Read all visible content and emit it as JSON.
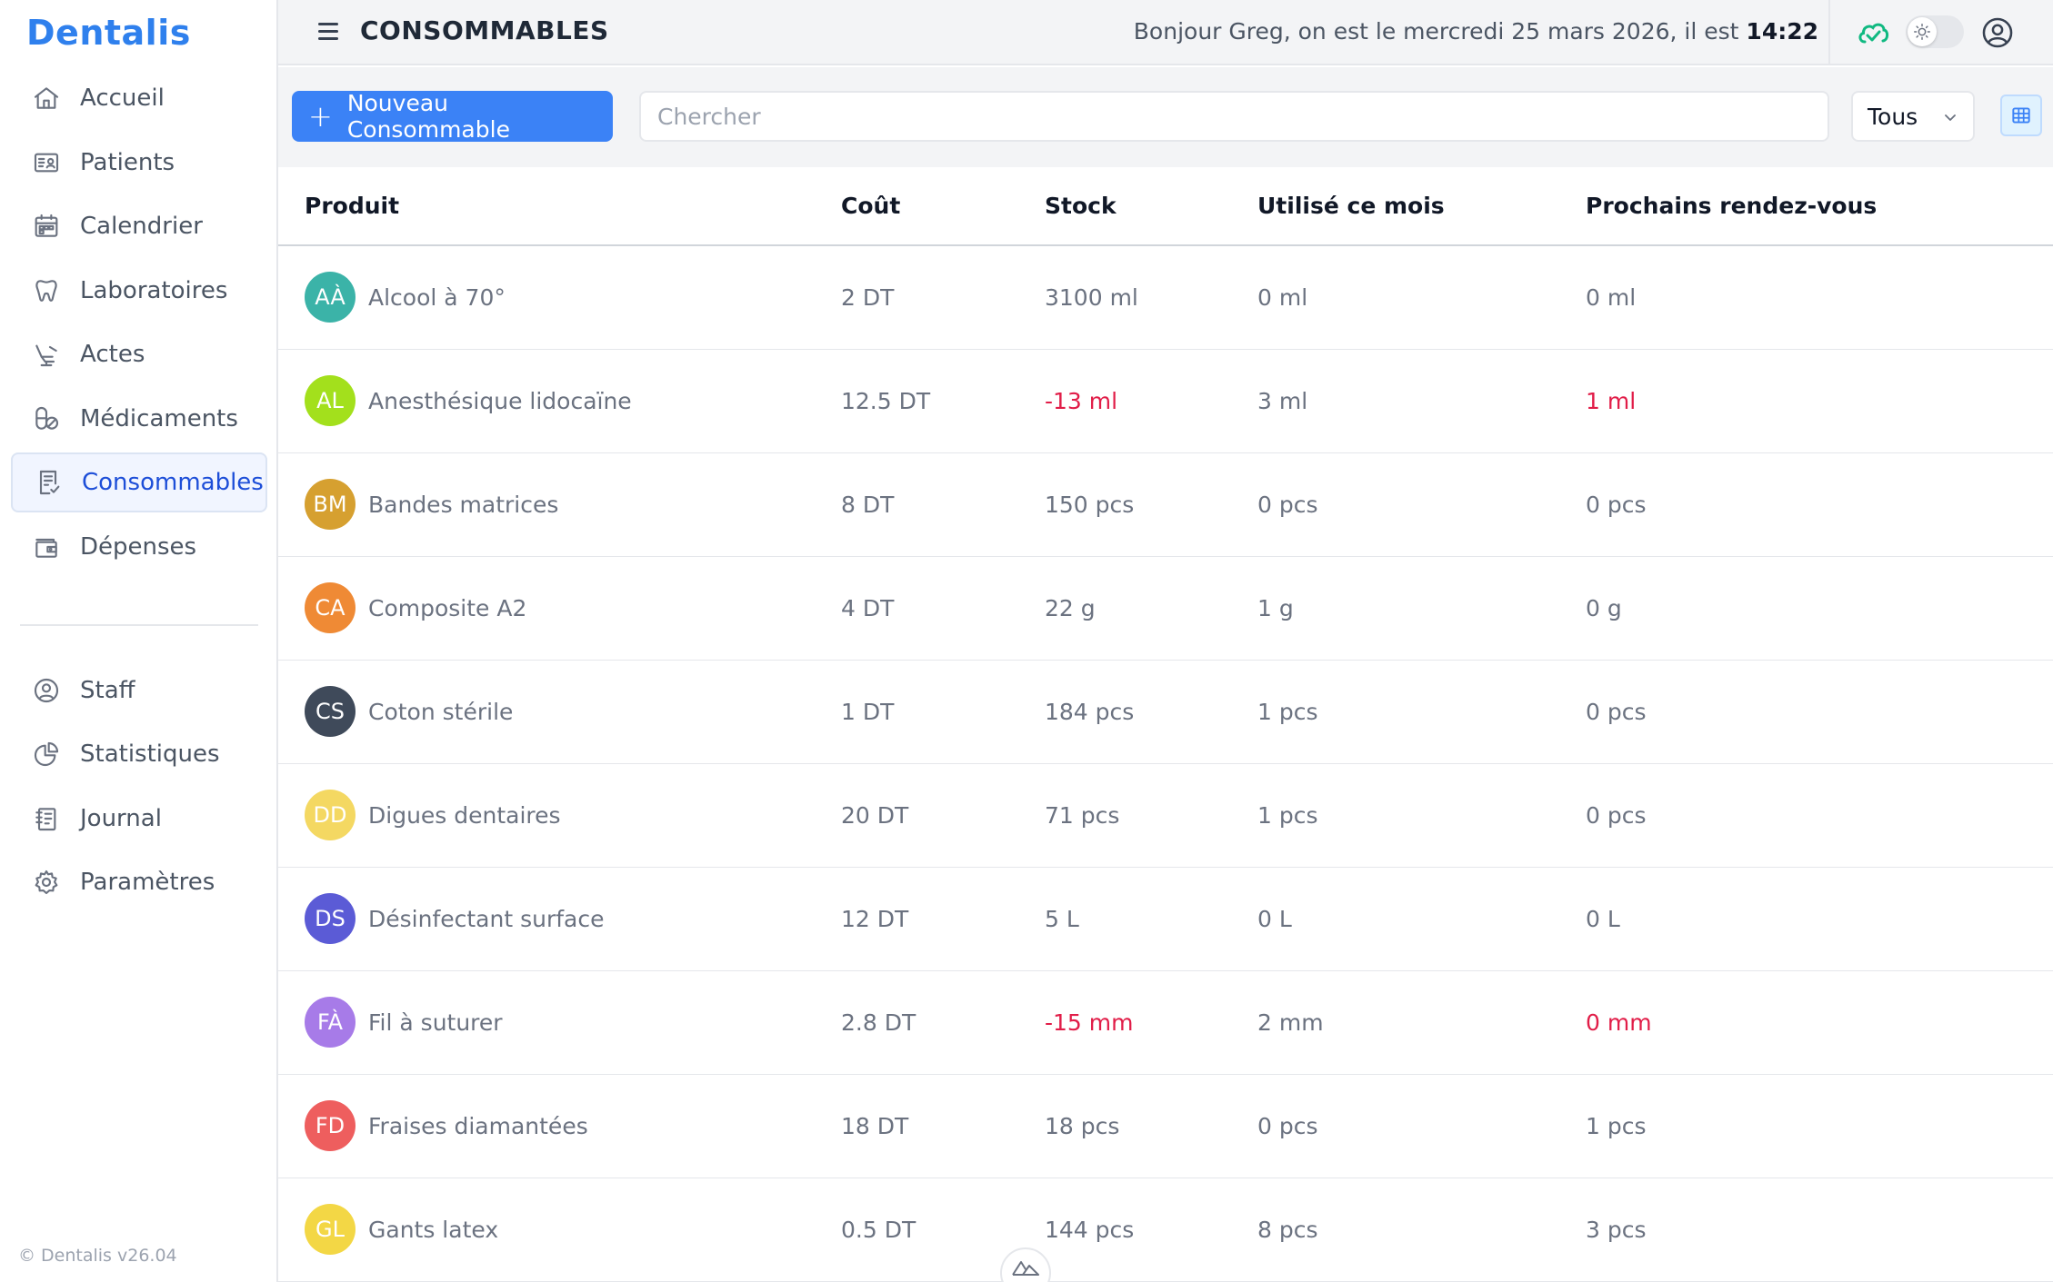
{
  "app": {
    "brand": "Dentalis",
    "version": "© Dentalis v26.04"
  },
  "sidebar": {
    "items": [
      {
        "label": "Accueil",
        "icon": "home-icon"
      },
      {
        "label": "Patients",
        "icon": "id-card-icon"
      },
      {
        "label": "Calendrier",
        "icon": "calendar-icon"
      },
      {
        "label": "Laboratoires",
        "icon": "tooth-icon"
      },
      {
        "label": "Actes",
        "icon": "dental-chair-icon"
      },
      {
        "label": "Médicaments",
        "icon": "pills-icon"
      },
      {
        "label": "Consommables",
        "icon": "checklist-icon",
        "active": true
      },
      {
        "label": "Dépenses",
        "icon": "wallet-icon"
      }
    ],
    "secondary": [
      {
        "label": "Staff",
        "icon": "user-circle-icon"
      },
      {
        "label": "Statistiques",
        "icon": "pie-chart-icon"
      },
      {
        "label": "Journal",
        "icon": "journal-icon"
      },
      {
        "label": "Paramètres",
        "icon": "gear-icon"
      }
    ]
  },
  "header": {
    "title": "CONSOMMABLES",
    "greeting_prefix": "Bonjour Greg, on est le mercredi 25 mars 2026, il est",
    "time": "14:22"
  },
  "toolbar": {
    "new_label": "Nouveau Consommable",
    "search_placeholder": "Chercher",
    "filter_value": "Tous"
  },
  "table": {
    "columns": [
      "Produit",
      "Coût",
      "Stock",
      "Utilisé ce mois",
      "Prochains rendez-vous"
    ],
    "rows": [
      {
        "initials": "AÀ",
        "color": "#3bb3a8",
        "name": "Alcool à 70°",
        "cost": "2 DT",
        "stock": "3100 ml",
        "stock_neg": false,
        "used": "0 ml",
        "next": "0 ml",
        "next_neg": false
      },
      {
        "initials": "AL",
        "color": "#a3e01c",
        "name": "Anesthésique lidocaïne",
        "cost": "12.5 DT",
        "stock": "-13 ml",
        "stock_neg": true,
        "used": "3 ml",
        "next": "1 ml",
        "next_neg": true
      },
      {
        "initials": "BM",
        "color": "#d6a030",
        "name": "Bandes matrices",
        "cost": "8 DT",
        "stock": "150 pcs",
        "stock_neg": false,
        "used": "0 pcs",
        "next": "0 pcs",
        "next_neg": false
      },
      {
        "initials": "CA",
        "color": "#ef8a35",
        "name": "Composite A2",
        "cost": "4 DT",
        "stock": "22 g",
        "stock_neg": false,
        "used": "1 g",
        "next": "0 g",
        "next_neg": false
      },
      {
        "initials": "CS",
        "color": "#3f4a5a",
        "name": "Coton stérile",
        "cost": "1 DT",
        "stock": "184 pcs",
        "stock_neg": false,
        "used": "1 pcs",
        "next": "0 pcs",
        "next_neg": false
      },
      {
        "initials": "DD",
        "color": "#f4d862",
        "name": "Digues dentaires",
        "cost": "20 DT",
        "stock": "71 pcs",
        "stock_neg": false,
        "used": "1 pcs",
        "next": "0 pcs",
        "next_neg": false
      },
      {
        "initials": "DS",
        "color": "#5b5bd6",
        "name": "Désinfectant surface",
        "cost": "12 DT",
        "stock": "5 L",
        "stock_neg": false,
        "used": "0 L",
        "next": "0 L",
        "next_neg": false
      },
      {
        "initials": "FÀ",
        "color": "#a77be8",
        "name": "Fil à suturer",
        "cost": "2.8 DT",
        "stock": "-15 mm",
        "stock_neg": true,
        "used": "2 mm",
        "next": "0 mm",
        "next_neg": true
      },
      {
        "initials": "FD",
        "color": "#ee5e5e",
        "name": "Fraises diamantées",
        "cost": "18 DT",
        "stock": "18 pcs",
        "stock_neg": false,
        "used": "0 pcs",
        "next": "1 pcs",
        "next_neg": false
      },
      {
        "initials": "GL",
        "color": "#f3d745",
        "name": "Gants latex",
        "cost": "0.5 DT",
        "stock": "144 pcs",
        "stock_neg": false,
        "used": "8 pcs",
        "next": "3 pcs",
        "next_neg": false
      }
    ]
  },
  "colors": {
    "accent": "#3b82f6",
    "negative": "#e11d48",
    "brand": "#2f80ed"
  }
}
